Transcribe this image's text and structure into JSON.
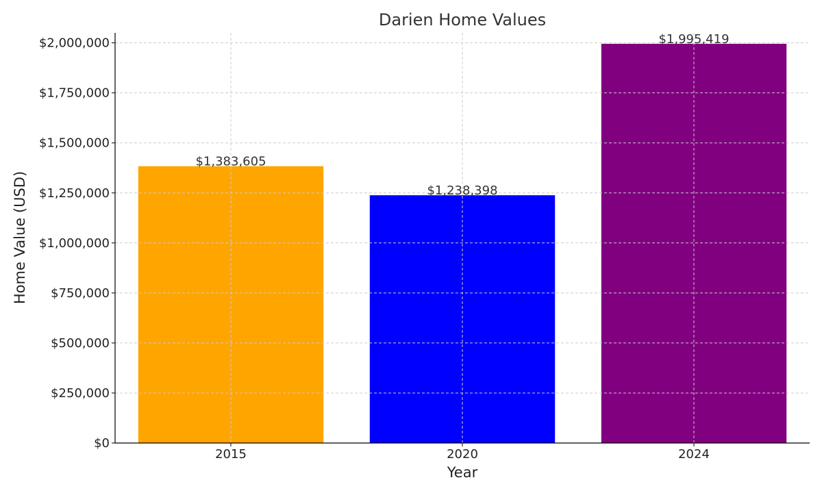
{
  "chart_data": {
    "type": "bar",
    "title": "Darien Home Values",
    "xlabel": "Year",
    "ylabel": "Home Value (USD)",
    "categories": [
      "2015",
      "2020",
      "2024"
    ],
    "values": [
      1383605,
      1238398,
      1995419
    ],
    "value_labels": [
      "$1,383,605",
      "$1,238,398",
      "$1,995,419"
    ],
    "colors": [
      "#FFA500",
      "#0000FF",
      "#800080"
    ],
    "ylim": [
      0,
      2050000
    ],
    "yticks": [
      0,
      250000,
      500000,
      750000,
      1000000,
      1250000,
      1500000,
      1750000,
      2000000
    ],
    "ytick_labels": [
      "$0",
      "$250,000",
      "$500,000",
      "$750,000",
      "$1,000,000",
      "$1,250,000",
      "$1,500,000",
      "$1,750,000",
      "$2,000,000"
    ],
    "grid": true,
    "legend": "none"
  }
}
